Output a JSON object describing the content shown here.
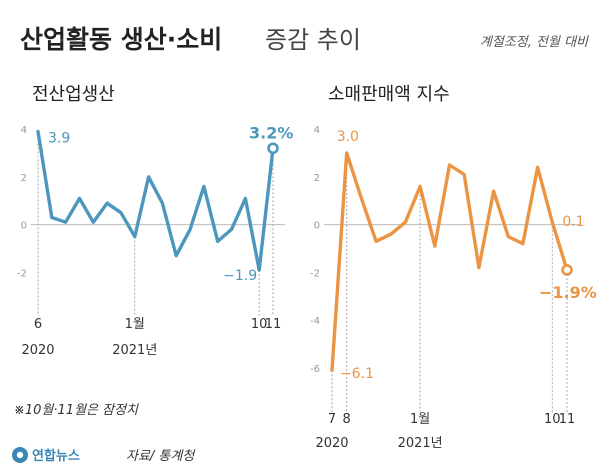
{
  "header": {
    "title_bold": "산업활동 생산·소비",
    "title_light": "증감 추이",
    "note": "계절조정, 전월 대비"
  },
  "footnote": "※10월·11월은 잠정치",
  "brand": {
    "name": "연합뉴스",
    "source": "자료/ 통계청",
    "logo_color": "#3b86b5"
  },
  "chart_data": [
    {
      "type": "line",
      "title": "전산업생산",
      "color": "#4d97bd",
      "ylim": [
        -6.3,
        4.3
      ],
      "yticks": [
        4,
        2,
        0,
        -2
      ],
      "x": [
        "2020-06",
        "2020-07",
        "2020-08",
        "2020-09",
        "2020-10",
        "2020-11",
        "2020-12",
        "2021-01",
        "2021-02",
        "2021-03",
        "2021-04",
        "2021-05",
        "2021-06",
        "2021-07",
        "2021-08",
        "2021-09",
        "2021-10",
        "2021-11"
      ],
      "values": [
        3.9,
        0.3,
        0.1,
        1.1,
        0.1,
        0.9,
        0.5,
        -0.5,
        2.0,
        0.9,
        -1.3,
        -0.2,
        1.6,
        -0.7,
        -0.2,
        1.1,
        -1.9,
        3.2
      ],
      "xtick_labels": [
        {
          "label": "6",
          "year": "2020",
          "index": 0
        },
        {
          "label": "1월",
          "year": "2021년",
          "index": 7
        },
        {
          "label": "10",
          "year": "",
          "index": 16
        },
        {
          "label": "11",
          "year": "",
          "index": 17
        }
      ],
      "data_labels": [
        {
          "index": 0,
          "text": "3.9",
          "color": "#4d97bd",
          "bold": false
        },
        {
          "index": 16,
          "text": "−1.9",
          "color": "#4d97bd",
          "bold": false
        },
        {
          "index": 17,
          "text": "3.2%",
          "color": "#4d97bd",
          "bold": true
        }
      ],
      "open_marker_index": 17
    },
    {
      "type": "line",
      "title": "소매판매액 지수",
      "color": "#ea9444",
      "ylim": [
        -6.3,
        4.3
      ],
      "yticks": [
        4,
        2,
        0,
        -2,
        -4,
        -6
      ],
      "x": [
        "2020-07",
        "2020-08",
        "2020-09",
        "2020-10",
        "2020-11",
        "2020-12",
        "2021-01",
        "2021-02",
        "2021-03",
        "2021-04",
        "2021-05",
        "2021-06",
        "2021-07",
        "2021-08",
        "2021-09",
        "2021-10",
        "2021-11"
      ],
      "values": [
        -6.1,
        3.0,
        1.1,
        -0.7,
        -0.4,
        0.1,
        1.6,
        -0.9,
        2.5,
        2.1,
        -1.8,
        1.4,
        -0.5,
        -0.8,
        2.4,
        0.1,
        -1.9
      ],
      "xtick_labels": [
        {
          "label": "7",
          "year": "2020",
          "index": 0
        },
        {
          "label": "8",
          "year": "",
          "index": 1
        },
        {
          "label": "1월",
          "year": "2021년",
          "index": 6
        },
        {
          "label": "10",
          "year": "",
          "index": 15
        },
        {
          "label": "11",
          "year": "",
          "index": 16
        }
      ],
      "data_labels": [
        {
          "index": 0,
          "text": "−6.1",
          "color": "#ea9444",
          "bold": false
        },
        {
          "index": 1,
          "text": "3.0",
          "color": "#ea9444",
          "bold": false
        },
        {
          "index": 15,
          "text": "0.1",
          "color": "#ea9444",
          "bold": false
        },
        {
          "index": 16,
          "text": "−1.9%",
          "color": "#ea9444",
          "bold": true
        }
      ],
      "open_marker_index": 16
    }
  ]
}
